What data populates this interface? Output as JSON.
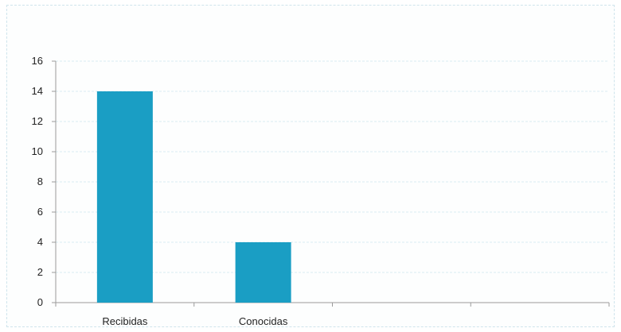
{
  "chart_data": {
    "type": "bar",
    "categories": [
      "Recibidas",
      "Conocidas",
      "",
      ""
    ],
    "values": [
      14,
      4,
      null,
      null
    ],
    "title": "",
    "xlabel": "",
    "ylabel": "",
    "ylim": [
      0,
      16
    ],
    "yticks": [
      0,
      2,
      4,
      6,
      8,
      10,
      12,
      14,
      16
    ],
    "grid": true,
    "legend": "none",
    "colors": {
      "bar": "#1a9ec4",
      "grid": "#d9ecf2",
      "axis": "#9a9a9a"
    }
  }
}
